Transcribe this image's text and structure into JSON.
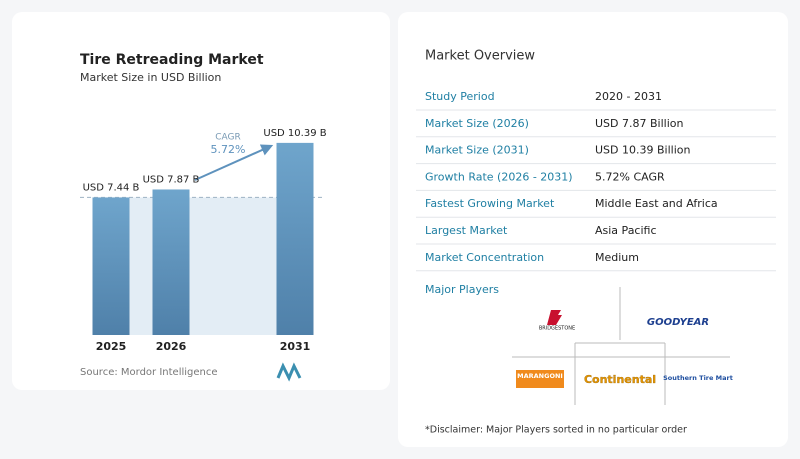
{
  "chart_data": {
    "type": "bar",
    "title": "Tire Retreading Market",
    "subtitle": "Market Size in USD Billion",
    "categories": [
      "2025",
      "2026",
      "2031"
    ],
    "values": [
      7.44,
      7.87,
      10.39
    ],
    "value_labels": [
      "USD 7.44 B",
      "USD 7.87 B",
      "USD 10.39 B"
    ],
    "annotations": [
      "CAGR",
      "5.72%"
    ],
    "color": "#5e92bd",
    "ylim": [
      0,
      10.6
    ],
    "source": "Source: Mordor Intelligence"
  },
  "overview": {
    "title": "Market Overview",
    "rows": [
      [
        "Study Period",
        "2020 - 2031"
      ],
      [
        "Market Size (2026)",
        "USD 7.87 Billion"
      ],
      [
        "Market Size (2031)",
        "USD 10.39 Billion"
      ],
      [
        "Growth Rate (2026 - 2031)",
        "5.72% CAGR"
      ],
      [
        "Fastest Growing Market",
        "Middle East and Africa"
      ],
      [
        "Largest Market",
        "Asia Pacific"
      ],
      [
        "Market Concentration",
        "Medium"
      ]
    ],
    "players_title": "Major Players",
    "players": [
      "BRIDGESTONE",
      "GOODYEAR",
      "MARANGONI",
      "Continental",
      "Southern Tire Mart"
    ],
    "disclaimer": "*Disclaimer: Major Players sorted in no particular order"
  }
}
